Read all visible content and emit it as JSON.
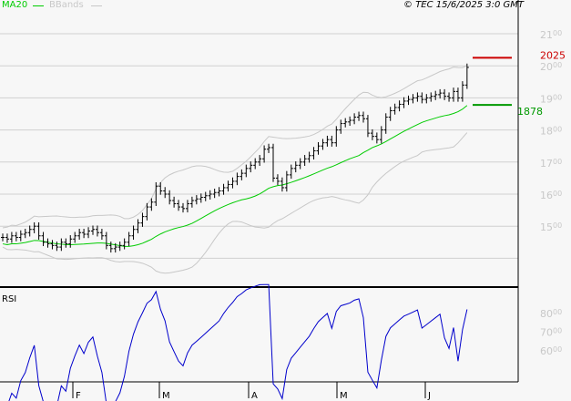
{
  "header": {
    "legend_ma": "MA20",
    "legend_bb": "BBands",
    "copyright": "© TEC 15/6/2025 3:0 GMT"
  },
  "colors": {
    "ma": "#00cc00",
    "bands": "#c8c8c8",
    "bars": "#000000",
    "rsi": "#0000cc",
    "resistance": "#cc0000",
    "support": "#009900"
  },
  "chart_data": {
    "type": "ohlc",
    "price_axis": {
      "ticks": [
        1500,
        1600,
        1700,
        1800,
        1900,
        2000,
        2100
      ],
      "range": [
        1400,
        2100
      ]
    },
    "rsi_axis": {
      "label": "RSI",
      "ticks": [
        80,
        70,
        60
      ]
    },
    "months": [
      "F",
      "M",
      "A",
      "M",
      "J"
    ],
    "closes": [
      1465,
      1460,
      1470,
      1465,
      1475,
      1480,
      1490,
      1500,
      1470,
      1450,
      1445,
      1440,
      1435,
      1450,
      1445,
      1460,
      1470,
      1480,
      1475,
      1485,
      1490,
      1480,
      1470,
      1440,
      1430,
      1435,
      1440,
      1450,
      1470,
      1490,
      1510,
      1530,
      1560,
      1575,
      1625,
      1610,
      1600,
      1580,
      1570,
      1560,
      1555,
      1570,
      1580,
      1585,
      1590,
      1595,
      1600,
      1605,
      1610,
      1620,
      1630,
      1640,
      1655,
      1665,
      1680,
      1690,
      1700,
      1710,
      1740,
      1745,
      1650,
      1640,
      1620,
      1660,
      1680,
      1690,
      1700,
      1710,
      1720,
      1735,
      1750,
      1760,
      1770,
      1760,
      1800,
      1820,
      1825,
      1830,
      1840,
      1845,
      1835,
      1790,
      1780,
      1770,
      1800,
      1840,
      1860,
      1870,
      1880,
      1890,
      1895,
      1900,
      1905,
      1895,
      1900,
      1905,
      1910,
      1915,
      1905,
      1900,
      1920,
      1900,
      1940,
      1995
    ],
    "resistance": {
      "value": 2025,
      "label": "2025"
    },
    "support": {
      "value": 1878,
      "label": "1878"
    }
  }
}
